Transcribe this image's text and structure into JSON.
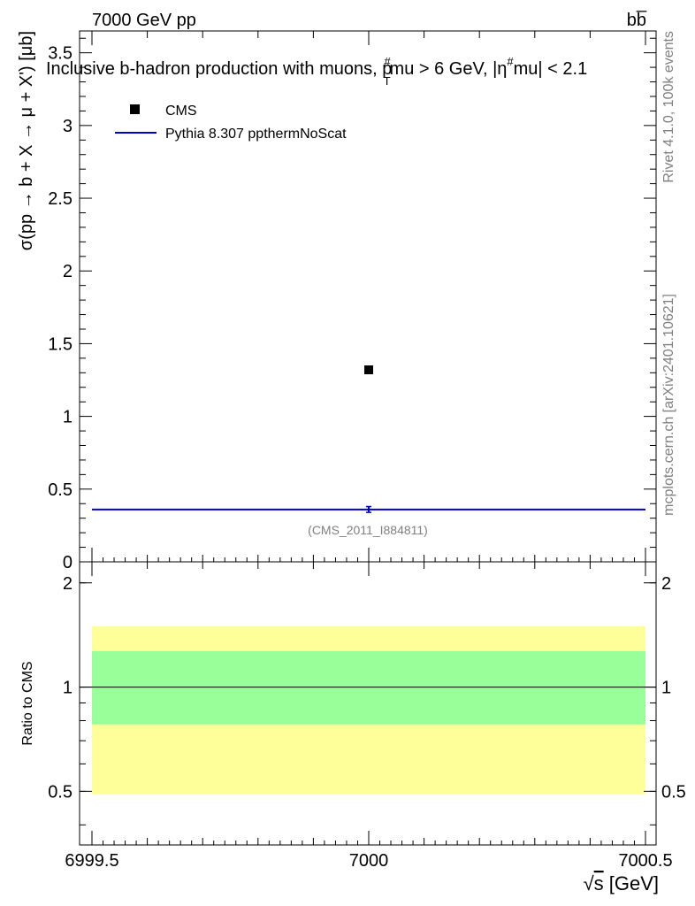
{
  "chart_data": {
    "type": "scatter",
    "header_left": "7000 GeV pp",
    "header_right": "bb̅",
    "title": "Inclusive b-hadron production with muons, p̃mu > 6 GeV, |η#mu| < 2.1",
    "title_parts": {
      "p1": "Inclusive b-hadron production with muons, ",
      "p2": "p",
      "p2_super": "#",
      "p2_sub": "T",
      "p3": "mu > 6 GeV, |",
      "p4": "η",
      "p4_super": "#",
      "p5": "mu| < 2.1"
    },
    "ylabel": "σ(pp → b + X → μ + X') [μb]",
    "xlabel": "√s [GeV]",
    "xlabel_parts": {
      "root": "√",
      "var": "s",
      "unit": " [GeV]"
    },
    "ratio_ylabel": "Ratio to CMS",
    "side_label_top": "Rivet 4.1.0,  100k events",
    "side_label_bottom": "mcplots.cern.ch [arXiv:2401.10621]",
    "analysis_id": "(CMS_2011_I884811)",
    "xlim": [
      6999.5,
      7000.5
    ],
    "ylim": [
      0,
      3.65
    ],
    "ratio_ylim": [
      0.35,
      2.3
    ],
    "x_ticks": [
      {
        "value": 6999.5,
        "label": "6999.5"
      },
      {
        "value": 7000.0,
        "label": "7000"
      },
      {
        "value": 7000.5,
        "label": "7000.5"
      }
    ],
    "y_ticks": [
      {
        "value": 0,
        "label": "0"
      },
      {
        "value": 0.5,
        "label": "0.5"
      },
      {
        "value": 1,
        "label": "1"
      },
      {
        "value": 1.5,
        "label": "1.5"
      },
      {
        "value": 2,
        "label": "2"
      },
      {
        "value": 2.5,
        "label": "2.5"
      },
      {
        "value": 3,
        "label": "3"
      },
      {
        "value": 3.5,
        "label": "3.5"
      }
    ],
    "ratio_ticks": [
      {
        "value": 0.5,
        "label": "0.5"
      },
      {
        "value": 1,
        "label": "1"
      },
      {
        "value": 2,
        "label": "2"
      }
    ],
    "legend": [
      {
        "name": "CMS",
        "marker": "square",
        "color": "#000000"
      },
      {
        "name": "Pythia 8.307 ppthermNoScat",
        "marker": "line",
        "color": "#0000cc"
      }
    ],
    "series": [
      {
        "name": "CMS",
        "x": [
          7000.0
        ],
        "y": [
          1.32
        ],
        "color": "#000000"
      },
      {
        "name": "Pythia 8.307 ppthermNoScat",
        "x": [
          6999.5,
          7000.5
        ],
        "y": [
          0.36,
          0.36
        ],
        "yerr": 0.02,
        "color": "#0000cc"
      }
    ],
    "ratio": {
      "line_value": 1.0,
      "band_inner": [
        0.78,
        1.27
      ],
      "band_outer": [
        0.49,
        1.5
      ],
      "inner_color": "#99ff99",
      "outer_color": "#ffff99"
    }
  }
}
